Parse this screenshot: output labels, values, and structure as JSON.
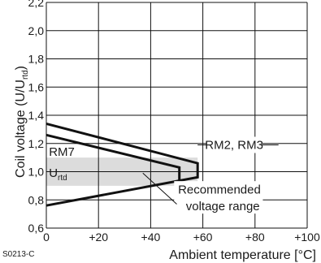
{
  "chart_data": {
    "type": "line",
    "title": "",
    "xlabel": "Ambient temperature [°C]",
    "ylabel": "Coil voltage (U/U",
    "ylabel_sub": "rtd",
    "ylabel_close": ")",
    "xlim": [
      0,
      100
    ],
    "ylim": [
      0.6,
      2.2
    ],
    "xticks": [
      0,
      20,
      40,
      60,
      80,
      100
    ],
    "xtick_labels": [
      "0",
      "+20",
      "+40",
      "+60",
      "+80",
      "+100"
    ],
    "yticks": [
      0.6,
      0.8,
      1.0,
      1.2,
      1.4,
      1.6,
      1.8,
      2.0,
      2.2
    ],
    "ytick_labels": [
      "0,6",
      "0,8",
      "1,0",
      "1,2",
      "1,4",
      "1,6",
      "1,8",
      "2,0",
      "2,2"
    ],
    "grid": true,
    "series": [
      {
        "name": "RM2, RM3",
        "points": [
          [
            0,
            1.34
          ],
          [
            58,
            1.06
          ],
          [
            58,
            0.96
          ],
          [
            0,
            0.76
          ]
        ]
      },
      {
        "name": "RM7",
        "points": [
          [
            0,
            1.26
          ],
          [
            51,
            1.03
          ],
          [
            51,
            0.94
          ]
        ]
      }
    ],
    "recommended_band": {
      "y_range": [
        0.9,
        1.1
      ],
      "x_range": [
        0,
        58
      ]
    },
    "annotations": [
      {
        "id": "rm23",
        "text": "RM2, RM3"
      },
      {
        "id": "rm7",
        "text": "RM7"
      },
      {
        "id": "urtd",
        "text": "U",
        "sub": "rtd"
      },
      {
        "id": "rec1",
        "text": "Recommended"
      },
      {
        "id": "rec2",
        "text": "voltage range"
      }
    ],
    "footnote": "S0213-C"
  }
}
